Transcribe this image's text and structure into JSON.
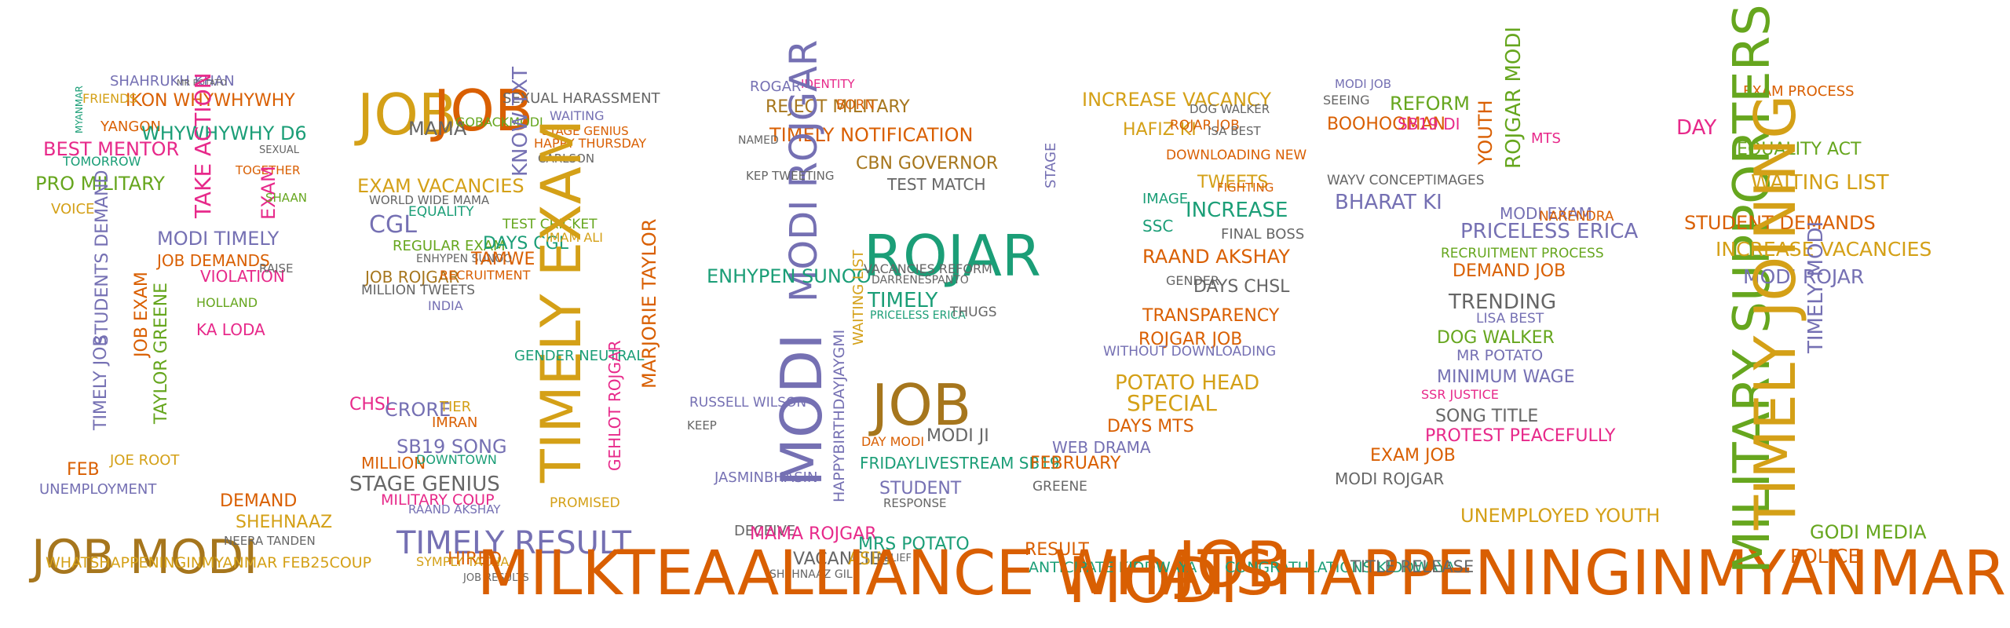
{
  "colors": {
    "purple": "#7570b3",
    "gold": "#d4a017",
    "teal": "#1b9e77",
    "orange": "#d95f02",
    "magenta": "#e7298a",
    "green": "#66a61e",
    "brown": "#a6761d",
    "gray": "#666666"
  },
  "words": [
    {
      "text": "SHAHRUKH KHAN",
      "c": "purple"
    },
    {
      "text": "MR POTATO",
      "c": "gray"
    },
    {
      "text": "IKON WHYWHYWHY",
      "c": "orange"
    },
    {
      "text": "FRIENDS",
      "c": "gold"
    },
    {
      "text": "BEST MENTOR",
      "c": "magenta"
    },
    {
      "text": "MYANMAR",
      "c": "teal"
    },
    {
      "text": "YANGON",
      "c": "orange"
    },
    {
      "text": "WHYWHYWHY D6",
      "c": "teal"
    },
    {
      "text": "TOMORROW",
      "c": "teal"
    },
    {
      "text": "PRO MILITARY",
      "c": "green"
    },
    {
      "text": "SEXUAL",
      "c": "gray"
    },
    {
      "text": "TAKE ACTION",
      "c": "magenta"
    },
    {
      "text": "TOGETHER",
      "c": "orange"
    },
    {
      "text": "EXAM",
      "c": "magenta"
    },
    {
      "text": "SHAAN",
      "c": "green"
    },
    {
      "text": "VOICE",
      "c": "gold"
    },
    {
      "text": "MODI TIMELY",
      "c": "purple"
    },
    {
      "text": "JOB DEMANDS",
      "c": "orange"
    },
    {
      "text": "VIOLATION",
      "c": "magenta"
    },
    {
      "text": "RAISE",
      "c": "gray"
    },
    {
      "text": "STUDENTS DEMAND",
      "c": "purple"
    },
    {
      "text": "HOLLAND",
      "c": "green"
    },
    {
      "text": "KA LODA",
      "c": "magenta"
    },
    {
      "text": "JOB EXAM",
      "c": "orange"
    },
    {
      "text": "TAYLOR GREENE",
      "c": "green"
    },
    {
      "text": "TIMELY JOB",
      "c": "purple"
    },
    {
      "text": "FEB",
      "c": "orange"
    },
    {
      "text": "JOE ROOT",
      "c": "gold"
    },
    {
      "text": "UNEMPLOYMENT",
      "c": "purple"
    },
    {
      "text": "JOB MODI",
      "c": "brown"
    },
    {
      "text": "DEMAND",
      "c": "orange"
    },
    {
      "text": "SHEHNAAZ",
      "c": "gold"
    },
    {
      "text": "NEERA TANDEN",
      "c": "gray"
    },
    {
      "text": "WHATSHAPPENINGINMYANMAR FEB25COUP",
      "c": "gold"
    },
    {
      "text": "JOB",
      "c": "gold"
    },
    {
      "text": "JOB",
      "c": "orange"
    },
    {
      "text": "MAMA",
      "c": "gray"
    },
    {
      "text": "GOBACKMODI",
      "c": "green"
    },
    {
      "text": "SEXUAL HARASSMENT",
      "c": "gray"
    },
    {
      "text": "WAITING",
      "c": "purple"
    },
    {
      "text": "STAGE GENIUS",
      "c": "orange"
    },
    {
      "text": "HAPPY THURSDAY",
      "c": "orange"
    },
    {
      "text": "CARLSON",
      "c": "gray"
    },
    {
      "text": "KNOW TXT",
      "c": "purple"
    },
    {
      "text": "EXAM VACANCIES",
      "c": "gold"
    },
    {
      "text": "WORLD WIDE MAMA",
      "c": "gray"
    },
    {
      "text": "CGL",
      "c": "purple"
    },
    {
      "text": "EQUALITY",
      "c": "teal"
    },
    {
      "text": "REGULAR EXAM",
      "c": "green"
    },
    {
      "text": "ENHYPEN SUNOO",
      "c": "gray"
    },
    {
      "text": "TEST CRICKET",
      "c": "green"
    },
    {
      "text": "DAYS CGL",
      "c": "teal"
    },
    {
      "text": "IMAM ALI",
      "c": "gold"
    },
    {
      "text": "TAMWE",
      "c": "orange"
    },
    {
      "text": "JOB ROJGAR",
      "c": "brown"
    },
    {
      "text": "RECRUITMENT",
      "c": "orange"
    },
    {
      "text": "MILLION TWEETS",
      "c": "gray"
    },
    {
      "text": "INDIA",
      "c": "purple"
    },
    {
      "text": "TIMELY EXAM",
      "c": "gold"
    },
    {
      "text": "GENDER NEUTRAL",
      "c": "teal"
    },
    {
      "text": "MARJORIE TAYLOR",
      "c": "orange"
    },
    {
      "text": "CHSL",
      "c": "magenta"
    },
    {
      "text": "CRORE",
      "c": "purple"
    },
    {
      "text": "TIER",
      "c": "gold"
    },
    {
      "text": "IMRAN",
      "c": "orange"
    },
    {
      "text": "SB19 SONG",
      "c": "purple"
    },
    {
      "text": "MILLION",
      "c": "orange"
    },
    {
      "text": "DOWNTOWN",
      "c": "teal"
    },
    {
      "text": "GEHLOT ROJGAR",
      "c": "magenta"
    },
    {
      "text": "STAGE GENIUS",
      "c": "gray"
    },
    {
      "text": "MILITARY COUP",
      "c": "magenta"
    },
    {
      "text": "RAAND AKSHAY",
      "c": "purple"
    },
    {
      "text": "PROMISED",
      "c": "gold"
    },
    {
      "text": "TIMELY RESULT",
      "c": "purple"
    },
    {
      "text": "HIRED",
      "c": "orange"
    },
    {
      "text": "SYMPLY TACHA",
      "c": "gold"
    },
    {
      "text": "JOB RESULTS",
      "c": "gray"
    },
    {
      "text": "ROGAR",
      "c": "purple"
    },
    {
      "text": "IDENTITY",
      "c": "magenta"
    },
    {
      "text": "REJECT MILITARY",
      "c": "brown"
    },
    {
      "text": "BORN",
      "c": "orange"
    },
    {
      "text": "TIMELY NOTIFICATION",
      "c": "orange"
    },
    {
      "text": "NAMED",
      "c": "gray"
    },
    {
      "text": "MODI ROJGAR",
      "c": "purple"
    },
    {
      "text": "CBN GOVERNOR",
      "c": "brown"
    },
    {
      "text": "KEP TWEETING",
      "c": "gray"
    },
    {
      "text": "TEST MATCH",
      "c": "gray"
    },
    {
      "text": "ROJAR",
      "c": "teal"
    },
    {
      "text": "ENHYPEN SUNOO",
      "c": "teal"
    },
    {
      "text": "VACANCIES REFORM",
      "c": "gray"
    },
    {
      "text": "DARRENESPANTO",
      "c": "gray"
    },
    {
      "text": "TIMELY",
      "c": "teal"
    },
    {
      "text": "PRICELESS ERICA",
      "c": "teal"
    },
    {
      "text": "JOB",
      "c": "brown"
    },
    {
      "text": "THUGS",
      "c": "gray"
    },
    {
      "text": "MODI",
      "c": "purple"
    },
    {
      "text": "RUSSELL WILSON",
      "c": "purple"
    },
    {
      "text": "HAPPYBIRTHDAYJAYGMI",
      "c": "purple"
    },
    {
      "text": "JASMINBHASIN",
      "c": "purple"
    },
    {
      "text": "KEEP",
      "c": "gray"
    },
    {
      "text": "WAITING LIST",
      "c": "gold"
    },
    {
      "text": "DAY MODI",
      "c": "orange"
    },
    {
      "text": "MODI JI",
      "c": "gray"
    },
    {
      "text": "FRIDAYLIVESTREAM SB19",
      "c": "teal"
    },
    {
      "text": "STUDENT",
      "c": "purple"
    },
    {
      "text": "RESPONSE",
      "c": "gray"
    },
    {
      "text": "DECEIVE",
      "c": "gray"
    },
    {
      "text": "MAMA ROJGAR",
      "c": "magenta"
    },
    {
      "text": "MRS POTATO",
      "c": "teal"
    },
    {
      "text": "VACANCIES",
      "c": "gray"
    },
    {
      "text": "ASIM",
      "c": "gold"
    },
    {
      "text": "RELIEF",
      "c": "gray"
    },
    {
      "text": "SHEHNAAZ GILL",
      "c": "gray"
    },
    {
      "text": "INCREASE VACANCY",
      "c": "gold"
    },
    {
      "text": "DOG WALKER",
      "c": "gray"
    },
    {
      "text": "HAFIZ KI",
      "c": "gold"
    },
    {
      "text": "ROJAR JOB",
      "c": "orange"
    },
    {
      "text": "ISA BEST",
      "c": "gray"
    },
    {
      "text": "DOWNLOADING NEW",
      "c": "orange"
    },
    {
      "text": "STAGE",
      "c": "purple"
    },
    {
      "text": "TWEETS",
      "c": "gold"
    },
    {
      "text": "FIGHTING",
      "c": "orange"
    },
    {
      "text": "IMAGE",
      "c": "teal"
    },
    {
      "text": "INCREASE",
      "c": "teal"
    },
    {
      "text": "SSC",
      "c": "teal"
    },
    {
      "text": "FINAL BOSS",
      "c": "gray"
    },
    {
      "text": "RAAND AKSHAY",
      "c": "orange"
    },
    {
      "text": "DAYS CHSL",
      "c": "gray"
    },
    {
      "text": "GENDER",
      "c": "gray"
    },
    {
      "text": "TRANSPARENCY",
      "c": "orange"
    },
    {
      "text": "ROJGAR JOB",
      "c": "orange"
    },
    {
      "text": "WITHOUT DOWNLOADING",
      "c": "purple"
    },
    {
      "text": "POTATO HEAD",
      "c": "gold"
    },
    {
      "text": "SPECIAL",
      "c": "gold"
    },
    {
      "text": "DAYS MTS",
      "c": "orange"
    },
    {
      "text": "WEB DRAMA",
      "c": "purple"
    },
    {
      "text": "FEBRUARY",
      "c": "orange"
    },
    {
      "text": "GREENE",
      "c": "gray"
    },
    {
      "text": "MODI",
      "c": "orange"
    },
    {
      "text": "JOB",
      "c": "orange"
    },
    {
      "text": "RESULT",
      "c": "orange"
    },
    {
      "text": "ANTICIPATE KIDDWAYA",
      "c": "teal"
    },
    {
      "text": "CONGRATULATIONS KIDDWAYA",
      "c": "teal"
    },
    {
      "text": "MODI JOB",
      "c": "purple"
    },
    {
      "text": "SEEING",
      "c": "gray"
    },
    {
      "text": "REFORM",
      "c": "green"
    },
    {
      "text": "BOOHOOMAN",
      "c": "orange"
    },
    {
      "text": "SB19 DI",
      "c": "magenta"
    },
    {
      "text": "YOUTH",
      "c": "orange"
    },
    {
      "text": "ROJGAR MODI",
      "c": "green"
    },
    {
      "text": "WAYV CONCEPTIMAGES",
      "c": "gray"
    },
    {
      "text": "BHARAT KI",
      "c": "purple"
    },
    {
      "text": "MTS",
      "c": "magenta"
    },
    {
      "text": "MODI EXAM",
      "c": "purple"
    },
    {
      "text": "NARENDRA",
      "c": "orange"
    },
    {
      "text": "PRICELESS ERICA",
      "c": "purple"
    },
    {
      "text": "RECRUITMENT PROCESS",
      "c": "green"
    },
    {
      "text": "DEMAND JOB",
      "c": "orange"
    },
    {
      "text": "TRENDING",
      "c": "gray"
    },
    {
      "text": "LISA BEST",
      "c": "purple"
    },
    {
      "text": "DOG WALKER",
      "c": "green"
    },
    {
      "text": "MR POTATO",
      "c": "purple"
    },
    {
      "text": "MINIMUM WAGE",
      "c": "purple"
    },
    {
      "text": "SSR JUSTICE",
      "c": "magenta"
    },
    {
      "text": "SONG TITLE",
      "c": "gray"
    },
    {
      "text": "PROTEST PEACEFULLY",
      "c": "magenta"
    },
    {
      "text": "EXAM JOB",
      "c": "orange"
    },
    {
      "text": "MODI ROJGAR",
      "c": "gray"
    },
    {
      "text": "MILKTEAALLIANCE WHATSHAPPENINGINMYANMAR",
      "c": "orange"
    },
    {
      "text": "UNEMPLOYED YOUTH",
      "c": "gold"
    },
    {
      "text": "TITLE RELEASE",
      "c": "gray"
    },
    {
      "text": "EXAM PROCESS",
      "c": "orange"
    },
    {
      "text": "DAY",
      "c": "magenta"
    },
    {
      "text": "EQUALITY ACT",
      "c": "green"
    },
    {
      "text": "MILITARY SUPPORTERS",
      "c": "green"
    },
    {
      "text": "WAITING LIST",
      "c": "gold"
    },
    {
      "text": "STUDENT DEMANDS",
      "c": "orange"
    },
    {
      "text": "INCREASE VACANCIES",
      "c": "gold"
    },
    {
      "text": "MODI ROJAR",
      "c": "purple"
    },
    {
      "text": "TIMELY MODI",
      "c": "purple"
    },
    {
      "text": "TIMELY JOINING",
      "c": "gold"
    },
    {
      "text": "GODI MEDIA",
      "c": "green"
    },
    {
      "text": "POLICE",
      "c": "orange"
    }
  ]
}
